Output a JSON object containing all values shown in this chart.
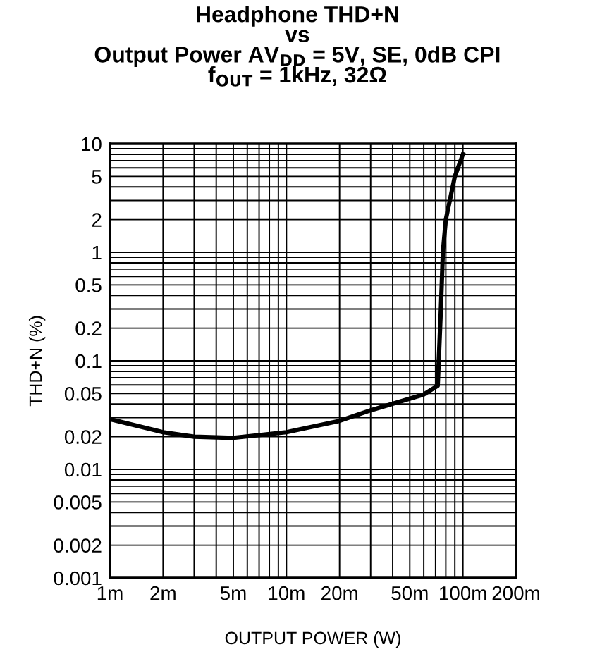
{
  "chart_data": {
    "type": "line",
    "title": "Headphone THD+N\nvs\nOutput Power AV$_{DD}$ = 5V, SE, 0dB CPI\nf$_{OUT}$ = 1kHz, 32Ω",
    "xlabel": "OUTPUT POWER (W)",
    "ylabel": "THD+N (%)",
    "log": "xy",
    "grid": true,
    "marker": "none",
    "line_style": "solid",
    "x": [
      1,
      2,
      3,
      5,
      10,
      20,
      30,
      60,
      72,
      75,
      77,
      80,
      90,
      100
    ],
    "series": [
      {
        "color": "#000000",
        "values": [
          0.029,
          0.022,
          0.02,
          0.0195,
          0.022,
          0.028,
          0.035,
          0.049,
          0.059,
          0.3,
          1,
          2,
          5,
          8
        ]
      }
    ],
    "xlim": [
      1,
      200
    ],
    "xticks": [
      {
        "value": 1,
        "label": "1m"
      },
      {
        "value": 2,
        "label": "2m"
      },
      {
        "value": 5,
        "label": "5m"
      },
      {
        "value": 10,
        "label": "10m"
      },
      {
        "value": 20,
        "label": "20m"
      },
      {
        "value": 50,
        "label": "50m"
      },
      {
        "value": 100,
        "label": "100m"
      },
      {
        "value": 200,
        "label": "200m"
      }
    ],
    "ylim": [
      0.001,
      10
    ],
    "yticks": [
      0.001,
      0.002,
      0.005,
      0.01,
      0.02,
      0.05,
      0.1,
      0.2,
      0.5,
      1,
      2,
      5,
      10
    ]
  }
}
